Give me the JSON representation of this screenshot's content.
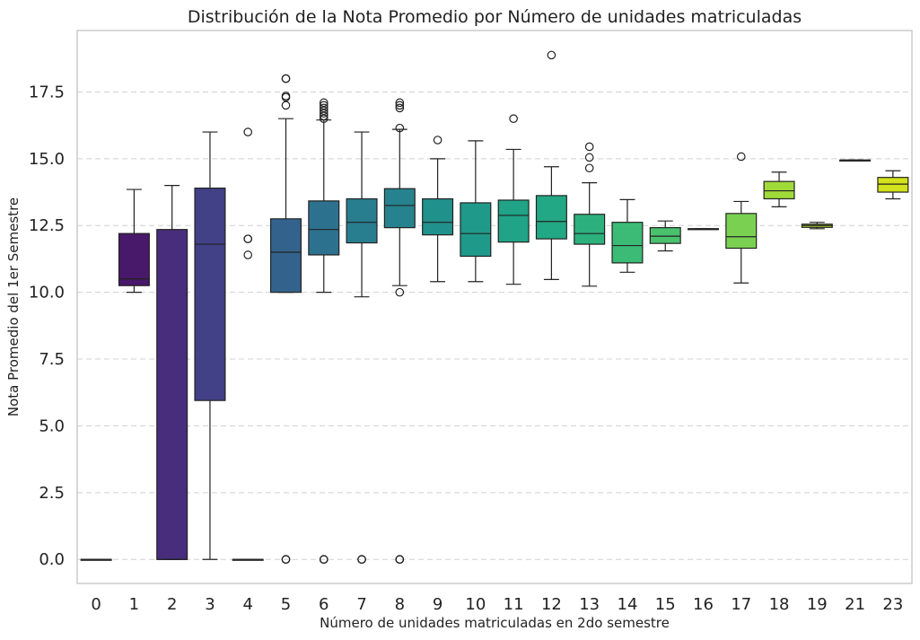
{
  "chart_data": {
    "type": "box",
    "title": "Distribución de la Nota Promedio por Número de unidades matriculadas",
    "xlabel": "Número de unidades matriculadas en 2do semestre",
    "ylabel": "Nota Promedio del 1er Semestre",
    "ylim": [
      -0.9,
      19.8
    ],
    "yticks": [
      0.0,
      2.5,
      5.0,
      7.5,
      10.0,
      12.5,
      15.0,
      17.5
    ],
    "ytick_labels": [
      "0.0",
      "2.5",
      "5.0",
      "7.5",
      "10.0",
      "12.5",
      "15.0",
      "17.5"
    ],
    "grid": "y-dashed",
    "categories": [
      "0",
      "1",
      "2",
      "3",
      "4",
      "5",
      "6",
      "7",
      "8",
      "9",
      "10",
      "11",
      "12",
      "13",
      "14",
      "15",
      "16",
      "17",
      "18",
      "19",
      "21",
      "23"
    ],
    "boxes": [
      {
        "category": "0",
        "whislo": 0.0,
        "q1": 0.0,
        "med": 0.0,
        "q3": 0.0,
        "whishi": 0.0,
        "fliers": [],
        "color": "#440154"
      },
      {
        "category": "1",
        "whislo": 10.0,
        "q1": 10.25,
        "med": 10.5,
        "q3": 12.2,
        "whishi": 13.85,
        "fliers": [],
        "color": "#48186a"
      },
      {
        "category": "2",
        "whislo": 0.0,
        "q1": 0.0,
        "med": 0.0,
        "q3": 12.35,
        "whishi": 14.0,
        "fliers": [],
        "color": "#472d7b"
      },
      {
        "category": "3",
        "whislo": 0.0,
        "q1": 5.95,
        "med": 11.8,
        "q3": 13.9,
        "whishi": 16.0,
        "fliers": [],
        "color": "#424086"
      },
      {
        "category": "4",
        "whislo": 0.0,
        "q1": 0.0,
        "med": 0.0,
        "q3": 0.0,
        "whishi": 0.0,
        "fliers": [
          16.0,
          12.0,
          12.0,
          11.4
        ],
        "color": "#3b528b"
      },
      {
        "category": "5",
        "whislo": 10.0,
        "q1": 10.0,
        "med": 11.5,
        "q3": 12.75,
        "whishi": 16.5,
        "fliers": [
          18.0,
          18.0,
          17.35,
          17.3,
          17.0,
          0.0,
          0.0,
          0.0
        ],
        "color": "#33638d"
      },
      {
        "category": "6",
        "whislo": 10.0,
        "q1": 11.4,
        "med": 12.35,
        "q3": 13.42,
        "whishi": 16.45,
        "fliers": [
          17.1,
          17.0,
          16.9,
          16.8,
          16.7,
          16.6,
          16.5,
          0.0,
          0.0,
          0.0
        ],
        "color": "#2c728e"
      },
      {
        "category": "7",
        "whislo": 9.83,
        "q1": 11.85,
        "med": 12.62,
        "q3": 13.5,
        "whishi": 16.0,
        "fliers": [
          0.0,
          0.0,
          0.0
        ],
        "color": "#287d8e"
      },
      {
        "category": "8",
        "whislo": 10.25,
        "q1": 12.42,
        "med": 13.25,
        "q3": 13.88,
        "whishi": 16.1,
        "fliers": [
          17.1,
          17.0,
          16.9,
          16.15,
          10.0,
          0.0,
          0.0,
          0.0
        ],
        "color": "#26828e"
      },
      {
        "category": "9",
        "whislo": 10.4,
        "q1": 12.15,
        "med": 12.62,
        "q3": 13.5,
        "whishi": 15.0,
        "fliers": [
          15.7
        ],
        "color": "#21918c"
      },
      {
        "category": "10",
        "whislo": 10.4,
        "q1": 11.35,
        "med": 12.2,
        "q3": 13.35,
        "whishi": 15.67,
        "fliers": [],
        "color": "#1f9a8a"
      },
      {
        "category": "11",
        "whislo": 10.3,
        "q1": 11.88,
        "med": 12.88,
        "q3": 13.45,
        "whishi": 15.35,
        "fliers": [
          16.5
        ],
        "color": "#20a386"
      },
      {
        "category": "12",
        "whislo": 10.48,
        "q1": 12.0,
        "med": 12.65,
        "q3": 13.62,
        "whishi": 14.7,
        "fliers": [
          18.88
        ],
        "color": "#22a884"
      },
      {
        "category": "13",
        "whislo": 10.23,
        "q1": 11.8,
        "med": 12.2,
        "q3": 12.92,
        "whishi": 14.1,
        "fliers": [
          15.45,
          15.05,
          14.65
        ],
        "color": "#2cb17e"
      },
      {
        "category": "14",
        "whislo": 10.75,
        "q1": 11.1,
        "med": 11.75,
        "q3": 12.62,
        "whishi": 13.47,
        "fliers": [],
        "color": "#3bbb75"
      },
      {
        "category": "15",
        "whislo": 11.55,
        "q1": 11.83,
        "med": 12.1,
        "q3": 12.42,
        "whishi": 12.67,
        "fliers": [],
        "color": "#4ac16d"
      },
      {
        "category": "16",
        "whislo": 12.38,
        "q1": 12.38,
        "med": 12.38,
        "q3": 12.38,
        "whishi": 12.38,
        "fliers": [],
        "color": "#5ec962"
      },
      {
        "category": "17",
        "whislo": 10.35,
        "q1": 11.65,
        "med": 12.08,
        "q3": 12.95,
        "whishi": 13.4,
        "fliers": [
          15.08
        ],
        "color": "#7ad151"
      },
      {
        "category": "18",
        "whislo": 13.2,
        "q1": 13.5,
        "med": 13.8,
        "q3": 14.15,
        "whishi": 14.5,
        "fliers": [],
        "color": "#a0da39"
      },
      {
        "category": "19",
        "whislo": 12.38,
        "q1": 12.43,
        "med": 12.5,
        "q3": 12.55,
        "whishi": 12.62,
        "fliers": [],
        "color": "#b5de2b"
      },
      {
        "category": "21",
        "whislo": 14.95,
        "q1": 14.95,
        "med": 14.95,
        "q3": 14.95,
        "whishi": 14.95,
        "fliers": [],
        "color": "#cde11d"
      },
      {
        "category": "23",
        "whislo": 13.5,
        "q1": 13.75,
        "med": 14.05,
        "q3": 14.3,
        "whishi": 14.55,
        "fliers": [],
        "color": "#d2e21b"
      }
    ]
  }
}
